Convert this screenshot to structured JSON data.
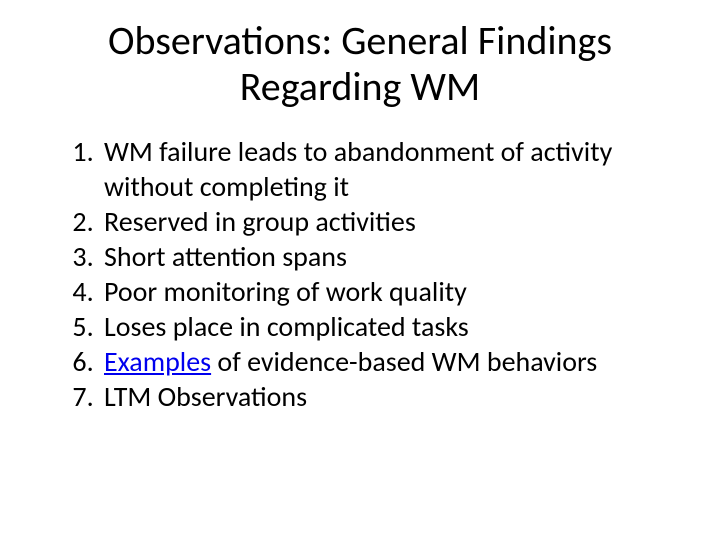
{
  "slide": {
    "title": "Observations: General Findings Regarding WM",
    "title_fontsize": 40,
    "title_color": "#000000",
    "background_color": "#ffffff",
    "body_fontsize": 28,
    "body_color": "#000000",
    "link_color": "#0000ee",
    "items": [
      {
        "text": "WM failure leads to abandonment of activity without completing it"
      },
      {
        "text": "Reserved in group activities"
      },
      {
        "text": "Short attention spans"
      },
      {
        "text": "Poor monitoring of work quality"
      },
      {
        "text": "Loses place in complicated tasks"
      },
      {
        "link_text": "Examples",
        "rest": " of evidence-based WM behaviors"
      },
      {
        "text": "LTM Observations"
      }
    ]
  }
}
